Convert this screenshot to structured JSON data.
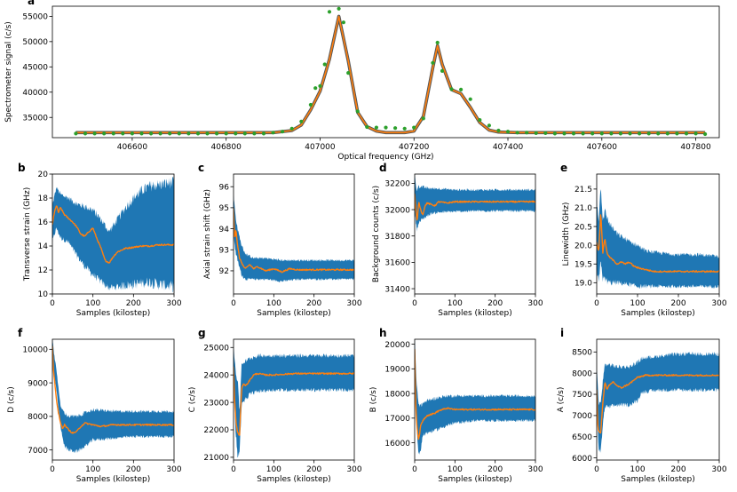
{
  "chart_data": [
    {
      "id": "a",
      "type": "scatter",
      "panel_label": "a",
      "xlabel": "Optical frequency (GHz)",
      "ylabel": "Spectrometer signal (c/s)",
      "xlim": [
        406430,
        407850
      ],
      "ylim": [
        31000,
        57000
      ],
      "xticks": [
        406600,
        406800,
        407000,
        407200,
        407400,
        407600,
        407800
      ],
      "yticks": [
        35000,
        40000,
        45000,
        50000,
        55000
      ],
      "points": {
        "x": [
          406480,
          406500,
          406520,
          406540,
          406560,
          406580,
          406600,
          406620,
          406640,
          406660,
          406680,
          406700,
          406720,
          406740,
          406760,
          406780,
          406800,
          406820,
          406840,
          406860,
          406880,
          406900,
          406920,
          406940,
          406960,
          406980,
          406990,
          407000,
          407010,
          407020,
          407040,
          407050,
          407060,
          407080,
          407100,
          407120,
          407140,
          407160,
          407180,
          407200,
          407220,
          407240,
          407250,
          407260,
          407280,
          407300,
          407320,
          407340,
          407360,
          407380,
          407400,
          407420,
          407440,
          407460,
          407480,
          407500,
          407520,
          407540,
          407560,
          407580,
          407600,
          407620,
          407640,
          407660,
          407680,
          407700,
          407720,
          407740,
          407760,
          407780,
          407800,
          407820
        ],
        "y": [
          31800,
          31800,
          31800,
          31800,
          31800,
          31800,
          31800,
          31800,
          31800,
          31800,
          31800,
          31800,
          31800,
          31800,
          31800,
          31800,
          31800,
          31800,
          31800,
          31800,
          31800,
          32000,
          32200,
          32800,
          34200,
          37500,
          40800,
          41200,
          45500,
          55900,
          56500,
          53800,
          43800,
          36200,
          33100,
          33000,
          33000,
          32900,
          32800,
          33000,
          34800,
          45800,
          49800,
          44200,
          40600,
          40500,
          38600,
          34500,
          33400,
          32400,
          32200,
          32000,
          32000,
          31900,
          31900,
          31800,
          31800,
          31800,
          31800,
          31800,
          31800,
          31800,
          31800,
          31800,
          31800,
          31800,
          31800,
          31800,
          31800,
          31800,
          31800,
          31700
        ]
      },
      "fit": {
        "x": [
          406480,
          406800,
          406900,
          406940,
          406960,
          406980,
          407000,
          407020,
          407040,
          407060,
          407080,
          407100,
          407120,
          407140,
          407160,
          407180,
          407200,
          407220,
          407240,
          407250,
          407260,
          407280,
          407300,
          407320,
          407340,
          407360,
          407380,
          407420,
          407820
        ],
        "y": [
          32000,
          32000,
          32000,
          32400,
          33500,
          36500,
          40200,
          46500,
          55000,
          46200,
          36000,
          33200,
          32300,
          32000,
          32000,
          32000,
          32300,
          35200,
          44800,
          49200,
          45500,
          40500,
          39700,
          37000,
          34000,
          32500,
          32100,
          32000,
          32000
        ]
      },
      "colors": {
        "points": "#2ca02c",
        "fit": "#ff7f0e",
        "band": "#555555"
      }
    },
    {
      "id": "b",
      "type": "line",
      "panel_label": "b",
      "xlabel": "Samples (kilostep)",
      "ylabel": "Transverse strain (GHz)",
      "xlim": [
        0,
        300
      ],
      "ylim": [
        10,
        20
      ],
      "xticks": [
        0,
        100,
        200,
        300
      ],
      "yticks": [
        10,
        12,
        14,
        16,
        18,
        20
      ],
      "trace": {
        "x": [
          0,
          5,
          10,
          15,
          20,
          30,
          40,
          50,
          60,
          70,
          80,
          90,
          100,
          110,
          120,
          130,
          140,
          150,
          160,
          180,
          200,
          220,
          240,
          260,
          280,
          300
        ],
        "y": [
          15.8,
          16.8,
          17.4,
          16.8,
          17.2,
          16.6,
          16.3,
          16.0,
          15.6,
          15.0,
          14.8,
          15.2,
          15.5,
          14.6,
          13.8,
          12.8,
          12.6,
          13.1,
          13.5,
          13.8,
          13.9,
          14.0,
          14.0,
          14.1,
          14.1,
          14.1
        ]
      },
      "band": {
        "x": [
          0,
          10,
          20,
          40,
          60,
          80,
          100,
          120,
          140,
          160,
          180,
          200,
          220,
          240,
          260,
          280,
          300
        ],
        "lower": [
          14.4,
          15.5,
          14.7,
          14.3,
          13.2,
          12.3,
          11.6,
          11.0,
          10.5,
          10.6,
          10.7,
          10.8,
          10.9,
          11.0,
          10.8,
          10.7,
          10.6
        ],
        "upper": [
          17.4,
          18.9,
          18.3,
          18.0,
          17.5,
          17.3,
          17.0,
          16.2,
          15.2,
          16.2,
          17.2,
          18.0,
          18.6,
          19.0,
          19.1,
          19.2,
          19.3
        ]
      },
      "colors": {
        "band": "#1f77b4",
        "trace": "#ff7f0e"
      }
    },
    {
      "id": "c",
      "type": "line",
      "panel_label": "c",
      "xlabel": "Samples (kilostep)",
      "ylabel": "Axial strain shift (GHz)",
      "xlim": [
        0,
        300
      ],
      "ylim": [
        90.9,
        96.6
      ],
      "xticks": [
        0,
        100,
        200,
        300
      ],
      "yticks": [
        92,
        93,
        94,
        95,
        96
      ],
      "trace": {
        "x": [
          0,
          3,
          6,
          10,
          15,
          20,
          25,
          30,
          40,
          50,
          60,
          80,
          100,
          120,
          140,
          160,
          200,
          250,
          300
        ],
        "y": [
          95.0,
          93.5,
          94.0,
          93.2,
          92.6,
          92.4,
          92.2,
          92.1,
          92.3,
          92.1,
          92.2,
          92.0,
          92.1,
          91.95,
          92.1,
          92.05,
          92.05,
          92.05,
          92.05
        ]
      },
      "band": {
        "x": [
          0,
          5,
          10,
          20,
          30,
          50,
          80,
          120,
          160,
          200,
          250,
          300
        ],
        "lower": [
          93.8,
          92.9,
          92.5,
          91.8,
          91.6,
          91.6,
          91.6,
          91.5,
          91.6,
          91.6,
          91.6,
          91.6
        ],
        "upper": [
          95.6,
          94.6,
          94.0,
          93.2,
          92.8,
          92.6,
          92.6,
          92.5,
          92.5,
          92.5,
          92.5,
          92.5
        ]
      },
      "colors": {
        "band": "#1f77b4",
        "trace": "#ff7f0e"
      }
    },
    {
      "id": "d",
      "type": "line",
      "panel_label": "d",
      "xlabel": "Samples (kilostep)",
      "ylabel": "Background counts (c/s)",
      "xlim": [
        0,
        300
      ],
      "ylim": [
        31360,
        32270
      ],
      "xticks": [
        0,
        100,
        200,
        300
      ],
      "yticks": [
        31400,
        31600,
        31800,
        32000,
        32200
      ],
      "trace": {
        "x": [
          0,
          3,
          6,
          10,
          15,
          20,
          25,
          30,
          40,
          50,
          60,
          80,
          100,
          150,
          200,
          250,
          300
        ],
        "y": [
          32120,
          32000,
          31900,
          32060,
          32000,
          31960,
          32020,
          32050,
          32040,
          32030,
          32060,
          32050,
          32060,
          32060,
          32060,
          32060,
          32060
        ]
      },
      "band": {
        "x": [
          0,
          5,
          10,
          20,
          40,
          60,
          100,
          150,
          200,
          250,
          300
        ],
        "lower": [
          31980,
          31850,
          31900,
          31930,
          31970,
          31980,
          31985,
          31990,
          31990,
          31990,
          31990
        ],
        "upper": [
          32260,
          32150,
          32180,
          32170,
          32160,
          32160,
          32150,
          32150,
          32150,
          32150,
          32150
        ]
      },
      "colors": {
        "band": "#1f77b4",
        "trace": "#ff7f0e"
      }
    },
    {
      "id": "e",
      "type": "line",
      "panel_label": "e",
      "xlabel": "Samples (kilostep)",
      "ylabel": "Linewidth (GHz)",
      "xlim": [
        0,
        300
      ],
      "ylim": [
        18.7,
        21.9
      ],
      "xticks": [
        0,
        100,
        200,
        300
      ],
      "yticks": [
        19.0,
        19.5,
        20.0,
        20.5,
        21.0,
        21.5
      ],
      "trace": {
        "x": [
          0,
          5,
          10,
          15,
          20,
          25,
          30,
          40,
          50,
          60,
          70,
          80,
          90,
          100,
          120,
          140,
          160,
          200,
          250,
          300
        ],
        "y": [
          20.1,
          19.8,
          20.9,
          19.8,
          20.2,
          19.8,
          19.7,
          19.6,
          19.5,
          19.55,
          19.5,
          19.55,
          19.45,
          19.4,
          19.35,
          19.3,
          19.3,
          19.3,
          19.3,
          19.3
        ]
      },
      "band": {
        "x": [
          0,
          5,
          10,
          15,
          20,
          30,
          50,
          80,
          100,
          120,
          150,
          200,
          250,
          300
        ],
        "lower": [
          19.3,
          19.0,
          19.6,
          19.1,
          19.1,
          19.0,
          19.0,
          18.95,
          18.9,
          18.9,
          18.9,
          18.9,
          18.9,
          18.9
        ],
        "upper": [
          21.2,
          20.7,
          21.6,
          20.7,
          20.9,
          20.6,
          20.3,
          20.1,
          20.0,
          19.85,
          19.8,
          19.75,
          19.75,
          19.7
        ]
      },
      "colors": {
        "band": "#1f77b4",
        "trace": "#ff7f0e"
      }
    },
    {
      "id": "f",
      "type": "line",
      "panel_label": "f",
      "xlabel": "Samples (kilostep)",
      "ylabel": "D (c/s)",
      "xlim": [
        0,
        300
      ],
      "ylim": [
        6700,
        10300
      ],
      "xticks": [
        0,
        100,
        200,
        300
      ],
      "yticks": [
        7000,
        8000,
        9000,
        10000
      ],
      "trace": {
        "x": [
          0,
          3,
          6,
          10,
          15,
          20,
          25,
          30,
          40,
          50,
          60,
          70,
          80,
          100,
          120,
          150,
          200,
          250,
          300
        ],
        "y": [
          10100,
          9300,
          9000,
          8500,
          8100,
          7800,
          7650,
          7750,
          7600,
          7500,
          7550,
          7700,
          7800,
          7750,
          7700,
          7750,
          7750,
          7750,
          7750
        ]
      },
      "band": {
        "x": [
          0,
          5,
          10,
          20,
          30,
          40,
          60,
          80,
          100,
          150,
          200,
          250,
          300
        ],
        "lower": [
          9800,
          9200,
          8800,
          7700,
          7100,
          7000,
          6950,
          7100,
          7300,
          7350,
          7400,
          7400,
          7400
        ],
        "upper": [
          10300,
          9800,
          9400,
          8300,
          8100,
          8000,
          8000,
          8100,
          8200,
          8150,
          8150,
          8150,
          8150
        ]
      },
      "colors": {
        "band": "#1f77b4",
        "trace": "#ff7f0e"
      }
    },
    {
      "id": "g",
      "type": "line",
      "panel_label": "g",
      "xlabel": "Samples (kilostep)",
      "ylabel": "C (c/s)",
      "xlim": [
        0,
        300
      ],
      "ylim": [
        20900,
        25300
      ],
      "xticks": [
        0,
        100,
        200,
        300
      ],
      "yticks": [
        21000,
        22000,
        23000,
        24000,
        25000
      ],
      "trace": {
        "x": [
          0,
          3,
          6,
          10,
          15,
          20,
          25,
          30,
          40,
          50,
          60,
          80,
          100,
          150,
          200,
          250,
          300
        ],
        "y": [
          24300,
          23000,
          22300,
          21900,
          21800,
          23500,
          23700,
          23600,
          23800,
          24000,
          24050,
          24000,
          24000,
          24050,
          24050,
          24050,
          24050
        ]
      },
      "band": {
        "x": [
          0,
          5,
          10,
          15,
          20,
          30,
          40,
          60,
          100,
          150,
          200,
          250,
          300
        ],
        "lower": [
          23800,
          22000,
          21000,
          21200,
          22900,
          23100,
          23300,
          23400,
          23450,
          23450,
          23450,
          23450,
          23450
        ],
        "upper": [
          25000,
          24200,
          23800,
          22700,
          24400,
          24500,
          24600,
          24700,
          24700,
          24700,
          24700,
          24700,
          24700
        ]
      },
      "colors": {
        "band": "#1f77b4",
        "trace": "#ff7f0e"
      }
    },
    {
      "id": "h",
      "type": "line",
      "panel_label": "h",
      "xlabel": "Samples (kilostep)",
      "ylabel": "B (c/s)",
      "xlim": [
        0,
        300
      ],
      "ylim": [
        15300,
        20200
      ],
      "xticks": [
        0,
        100,
        200,
        300
      ],
      "yticks": [
        16000,
        17000,
        18000,
        19000,
        20000
      ],
      "trace": {
        "x": [
          0,
          3,
          6,
          10,
          15,
          20,
          25,
          30,
          40,
          50,
          60,
          80,
          100,
          150,
          200,
          250,
          300
        ],
        "y": [
          19800,
          17400,
          16600,
          16100,
          16700,
          16900,
          17000,
          17100,
          17150,
          17200,
          17300,
          17400,
          17350,
          17350,
          17350,
          17350,
          17350
        ]
      },
      "band": {
        "x": [
          0,
          5,
          10,
          15,
          20,
          30,
          50,
          80,
          100,
          150,
          200,
          250,
          300
        ],
        "lower": [
          19000,
          16600,
          15500,
          15700,
          16300,
          16400,
          16500,
          16700,
          16800,
          16900,
          16900,
          16900,
          16900
        ],
        "upper": [
          20200,
          18300,
          17600,
          17500,
          17600,
          17700,
          17800,
          17900,
          17900,
          17900,
          17900,
          17900,
          17900
        ]
      },
      "colors": {
        "band": "#1f77b4",
        "trace": "#ff7f0e"
      }
    },
    {
      "id": "i",
      "type": "line",
      "panel_label": "i",
      "xlabel": "Samples (kilostep)",
      "ylabel": "A (c/s)",
      "xlim": [
        0,
        300
      ],
      "ylim": [
        5950,
        8800
      ],
      "xticks": [
        0,
        100,
        200,
        300
      ],
      "yticks": [
        6000,
        6500,
        7000,
        7500,
        8000,
        8500
      ],
      "trace": {
        "x": [
          0,
          3,
          6,
          10,
          15,
          20,
          25,
          30,
          35,
          40,
          50,
          60,
          70,
          80,
          100,
          120,
          150,
          200,
          250,
          300
        ],
        "y": [
          7600,
          6700,
          6600,
          6600,
          7300,
          7800,
          7600,
          7700,
          7750,
          7800,
          7700,
          7650,
          7700,
          7750,
          7900,
          7950,
          7950,
          7950,
          7950,
          7950
        ]
      },
      "band": {
        "x": [
          0,
          5,
          10,
          15,
          20,
          30,
          50,
          80,
          100,
          110,
          150,
          200,
          250,
          300
        ],
        "lower": [
          7200,
          6200,
          6150,
          6800,
          7200,
          7200,
          7250,
          7250,
          7350,
          7550,
          7600,
          7600,
          7600,
          7600
        ],
        "upper": [
          8100,
          7300,
          7300,
          7800,
          8200,
          8200,
          8150,
          8150,
          8250,
          8350,
          8400,
          8450,
          8450,
          8450
        ]
      },
      "colors": {
        "band": "#1f77b4",
        "trace": "#ff7f0e"
      }
    }
  ]
}
